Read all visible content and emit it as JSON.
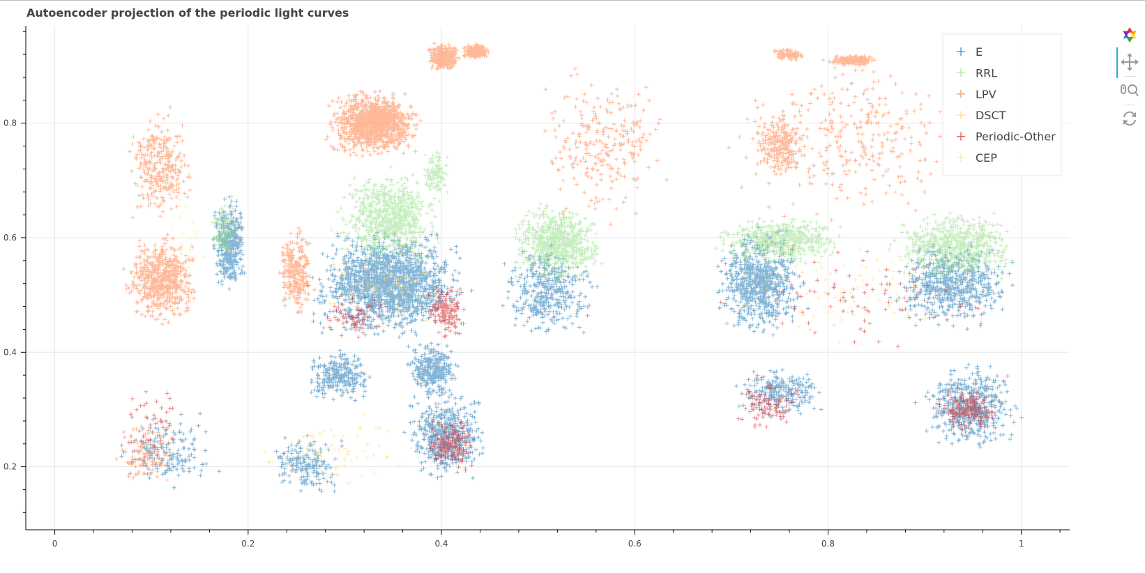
{
  "title": "Autoencoder projection of the periodic light curves",
  "toolbar": {
    "tools": [
      {
        "name": "bokeh-logo-icon",
        "interactable": false
      },
      {
        "name": "pan-tool-icon",
        "interactable": true,
        "active": true
      },
      {
        "name": "wheel-zoom-tool-icon",
        "interactable": true
      },
      {
        "name": "reset-tool-icon",
        "interactable": true
      }
    ]
  },
  "chart_data": {
    "type": "scatter",
    "marker": "cross",
    "title": "Autoencoder projection of the periodic light curves",
    "xlabel": "",
    "ylabel": "",
    "xlim": [
      -0.03,
      1.05
    ],
    "ylim": [
      0.09,
      0.97
    ],
    "x_ticks": [
      0,
      0.2,
      0.4,
      0.6,
      0.8,
      1
    ],
    "x_tick_labels": [
      "0",
      "0.2",
      "0.4",
      "0.6",
      "0.8",
      "1"
    ],
    "y_ticks": [
      0.2,
      0.4,
      0.6,
      0.8
    ],
    "y_tick_labels": [
      "0.2",
      "0.4",
      "0.6",
      "0.8"
    ],
    "grid": true,
    "legend_position": "top-right",
    "series": [
      {
        "name": "E",
        "color": "#1f78b4",
        "clusters": [
          {
            "x": [
              0.16,
              0.2
            ],
            "y": [
              0.5,
              0.68
            ],
            "n": 380
          },
          {
            "x": [
              0.26,
              0.43
            ],
            "y": [
              0.42,
              0.62
            ],
            "n": 1600
          },
          {
            "x": [
              0.26,
              0.33
            ],
            "y": [
              0.31,
              0.41
            ],
            "n": 260
          },
          {
            "x": [
              0.36,
              0.42
            ],
            "y": [
              0.32,
              0.42
            ],
            "n": 320
          },
          {
            "x": [
              0.36,
              0.45
            ],
            "y": [
              0.17,
              0.34
            ],
            "n": 520
          },
          {
            "x": [
              0.46,
              0.56
            ],
            "y": [
              0.41,
              0.6
            ],
            "n": 380
          },
          {
            "x": [
              0.68,
              0.78
            ],
            "y": [
              0.42,
              0.62
            ],
            "n": 700
          },
          {
            "x": [
              0.86,
              1.0
            ],
            "y": [
              0.44,
              0.6
            ],
            "n": 600
          },
          {
            "x": [
              0.89,
              1.0
            ],
            "y": [
              0.22,
              0.39
            ],
            "n": 500
          },
          {
            "x": [
              0.7,
              0.8
            ],
            "y": [
              0.28,
              0.38
            ],
            "n": 240
          },
          {
            "x": [
              0.06,
              0.18
            ],
            "y": [
              0.15,
              0.3
            ],
            "n": 160
          },
          {
            "x": [
              0.22,
              0.3
            ],
            "y": [
              0.15,
              0.26
            ],
            "n": 180
          }
        ]
      },
      {
        "name": "RRL",
        "color": "#98df8a",
        "clusters": [
          {
            "x": [
              0.16,
              0.19
            ],
            "y": [
              0.55,
              0.68
            ],
            "n": 90
          },
          {
            "x": [
              0.29,
              0.4
            ],
            "y": [
              0.55,
              0.72
            ],
            "n": 700
          },
          {
            "x": [
              0.38,
              0.41
            ],
            "y": [
              0.66,
              0.76
            ],
            "n": 90
          },
          {
            "x": [
              0.47,
              0.57
            ],
            "y": [
              0.52,
              0.66
            ],
            "n": 650
          },
          {
            "x": [
              0.68,
              0.82
            ],
            "y": [
              0.55,
              0.64
            ],
            "n": 500
          },
          {
            "x": [
              0.86,
              1.0
            ],
            "y": [
              0.52,
              0.65
            ],
            "n": 600
          }
        ]
      },
      {
        "name": "LPV",
        "color": "#ff7f45",
        "clusters": [
          {
            "x": [
              0.07,
              0.15
            ],
            "y": [
              0.44,
              0.61
            ],
            "n": 600
          },
          {
            "x": [
              0.07,
              0.15
            ],
            "y": [
              0.62,
              0.83
            ],
            "n": 300
          },
          {
            "x": [
              0.28,
              0.38
            ],
            "y": [
              0.74,
              0.86
            ],
            "n": 1200
          },
          {
            "x": [
              0.385,
              0.42
            ],
            "y": [
              0.89,
              0.94
            ],
            "n": 340
          },
          {
            "x": [
              0.42,
              0.45
            ],
            "y": [
              0.91,
              0.94
            ],
            "n": 180
          },
          {
            "x": [
              0.23,
              0.27
            ],
            "y": [
              0.45,
              0.62
            ],
            "n": 260
          },
          {
            "x": [
              0.74,
              0.78
            ],
            "y": [
              0.91,
              0.93
            ],
            "n": 90
          },
          {
            "x": [
              0.8,
              0.85
            ],
            "y": [
              0.9,
              0.92
            ],
            "n": 180
          },
          {
            "x": [
              0.72,
              0.78
            ],
            "y": [
              0.7,
              0.82
            ],
            "n": 240
          },
          {
            "x": [
              0.5,
              0.64
            ],
            "y": [
              0.62,
              0.9
            ],
            "n": 260
          },
          {
            "x": [
              0.7,
              0.95
            ],
            "y": [
              0.62,
              0.93
            ],
            "n": 300
          },
          {
            "x": [
              0.06,
              0.13
            ],
            "y": [
              0.16,
              0.28
            ],
            "n": 120
          }
        ]
      },
      {
        "name": "DSCT",
        "color": "#ffd966",
        "clusters": [
          {
            "x": [
              0.26,
              0.43
            ],
            "y": [
              0.42,
              0.62
            ],
            "n": 70
          },
          {
            "x": [
              0.68,
              1.0
            ],
            "y": [
              0.4,
              0.62
            ],
            "n": 45
          },
          {
            "x": [
              0.2,
              0.36
            ],
            "y": [
              0.15,
              0.3
            ],
            "n": 40
          }
        ]
      },
      {
        "name": "Periodic-Other",
        "color": "#d62728",
        "clusters": [
          {
            "x": [
              0.38,
              0.43
            ],
            "y": [
              0.42,
              0.52
            ],
            "n": 150
          },
          {
            "x": [
              0.38,
              0.44
            ],
            "y": [
              0.19,
              0.29
            ],
            "n": 170
          },
          {
            "x": [
              0.91,
              0.98
            ],
            "y": [
              0.26,
              0.34
            ],
            "n": 170
          },
          {
            "x": [
              0.7,
              0.78
            ],
            "y": [
              0.26,
              0.36
            ],
            "n": 90
          },
          {
            "x": [
              0.26,
              0.35
            ],
            "y": [
              0.42,
              0.5
            ],
            "n": 70
          },
          {
            "x": [
              0.06,
              0.14
            ],
            "y": [
              0.18,
              0.36
            ],
            "n": 40
          },
          {
            "x": [
              0.68,
              0.98
            ],
            "y": [
              0.4,
              0.6
            ],
            "n": 80
          }
        ]
      },
      {
        "name": "CEP",
        "color": "#ecec94",
        "clusters": [
          {
            "x": [
              0.1,
              0.17
            ],
            "y": [
              0.45,
              0.76
            ],
            "n": 25
          },
          {
            "x": [
              0.2,
              0.4
            ],
            "y": [
              0.15,
              0.3
            ],
            "n": 35
          },
          {
            "x": [
              0.7,
              0.95
            ],
            "y": [
              0.4,
              0.62
            ],
            "n": 35
          }
        ]
      }
    ]
  }
}
